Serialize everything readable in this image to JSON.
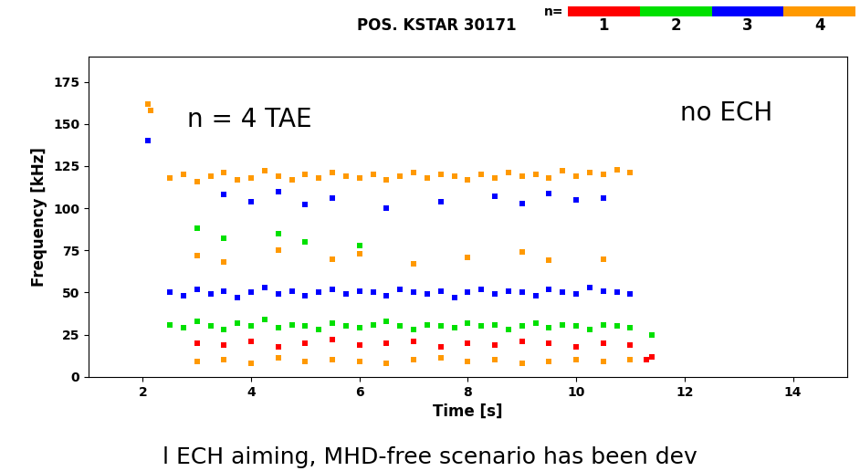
{
  "chart_data": {
    "type": "scatter",
    "title": "POS. KSTAR 30171",
    "legend_title": "n=",
    "x_label": "Time [s]",
    "y_label": "Frequency [kHz]",
    "annotations": [
      "n = 4 TAE",
      "no ECH"
    ],
    "footer": "l ECH aiming, MHD-free scenario has been dev",
    "xlim": [
      1,
      15
    ],
    "xticks": [
      2,
      4,
      6,
      8,
      10,
      12,
      14
    ],
    "ylim": [
      0,
      190
    ],
    "yticks": [
      0,
      25,
      50,
      75,
      100,
      125,
      150,
      175
    ],
    "grid": false,
    "marker": "square",
    "series": [
      {
        "name": "1",
        "color": "#ff0000",
        "x": [
          3,
          3.5,
          4,
          4.5,
          5,
          5.5,
          6,
          6.5,
          7,
          7.5,
          8,
          8.5,
          9,
          9.5,
          10,
          10.5,
          11,
          11.3,
          11.4
        ],
        "values": [
          20,
          19,
          21,
          18,
          20,
          22,
          19,
          20,
          21,
          18,
          20,
          19,
          21,
          20,
          18,
          20,
          19,
          10,
          12
        ]
      },
      {
        "name": "2",
        "color": "#00e000",
        "x": [
          2.5,
          2.75,
          3,
          3.25,
          3.5,
          3.75,
          4,
          4.25,
          4.5,
          4.75,
          5,
          5.25,
          5.5,
          5.75,
          6,
          6.25,
          6.5,
          6.75,
          7,
          7.25,
          7.5,
          7.75,
          8,
          8.25,
          8.5,
          8.75,
          9,
          9.25,
          9.5,
          9.75,
          10,
          10.25,
          10.5,
          10.75,
          11,
          3,
          3.5,
          4.5,
          5,
          6,
          11.4
        ],
        "values": [
          31,
          29,
          33,
          30,
          28,
          32,
          30,
          34,
          29,
          31,
          30,
          28,
          32,
          30,
          29,
          31,
          33,
          30,
          28,
          31,
          30,
          29,
          32,
          30,
          31,
          28,
          30,
          32,
          29,
          31,
          30,
          28,
          31,
          30,
          29,
          88,
          82,
          85,
          80,
          78,
          25
        ]
      },
      {
        "name": "3",
        "color": "#0000ff",
        "x": [
          2.5,
          2.75,
          3,
          3.25,
          3.5,
          3.75,
          4,
          4.25,
          4.5,
          4.75,
          5,
          5.25,
          5.5,
          5.75,
          6,
          6.25,
          6.5,
          6.75,
          7,
          7.25,
          7.5,
          7.75,
          8,
          8.25,
          8.5,
          8.75,
          9,
          9.25,
          9.5,
          9.75,
          10,
          10.25,
          10.5,
          10.75,
          11,
          3.5,
          4,
          4.5,
          5,
          5.5,
          6.5,
          7.5,
          8.5,
          9,
          9.5,
          10,
          10.5,
          2.1
        ],
        "values": [
          50,
          48,
          52,
          49,
          51,
          47,
          50,
          53,
          49,
          51,
          48,
          50,
          52,
          49,
          51,
          50,
          48,
          52,
          50,
          49,
          51,
          47,
          50,
          52,
          49,
          51,
          50,
          48,
          52,
          50,
          49,
          53,
          51,
          50,
          49,
          108,
          104,
          110,
          102,
          106,
          100,
          104,
          107,
          103,
          109,
          105,
          106,
          140
        ]
      },
      {
        "name": "4",
        "color": "#ff9900",
        "x": [
          2.5,
          2.75,
          3,
          3.25,
          3.5,
          3.75,
          4,
          4.25,
          4.5,
          4.75,
          5,
          5.25,
          5.5,
          5.75,
          6,
          6.25,
          6.5,
          6.75,
          7,
          7.25,
          7.5,
          7.75,
          8,
          8.25,
          8.5,
          8.75,
          9,
          9.25,
          9.5,
          9.75,
          10,
          10.25,
          10.5,
          10.75,
          11,
          3,
          3.5,
          4,
          4.5,
          5,
          5.5,
          6,
          6.5,
          7,
          7.5,
          8,
          8.5,
          9,
          9.5,
          10,
          10.5,
          11,
          3,
          3.5,
          4.5,
          5.5,
          6,
          7,
          8,
          9,
          9.5,
          10.5,
          2.1,
          2.15
        ],
        "values": [
          118,
          120,
          116,
          119,
          121,
          117,
          118,
          122,
          119,
          117,
          120,
          118,
          121,
          119,
          118,
          120,
          117,
          119,
          121,
          118,
          120,
          119,
          117,
          120,
          118,
          121,
          119,
          120,
          118,
          122,
          119,
          121,
          120,
          123,
          121,
          9,
          10,
          8,
          11,
          9,
          10,
          9,
          8,
          10,
          11,
          9,
          10,
          8,
          9,
          10,
          9,
          10,
          72,
          68,
          75,
          70,
          73,
          67,
          71,
          74,
          69,
          70,
          162,
          158
        ]
      }
    ]
  }
}
